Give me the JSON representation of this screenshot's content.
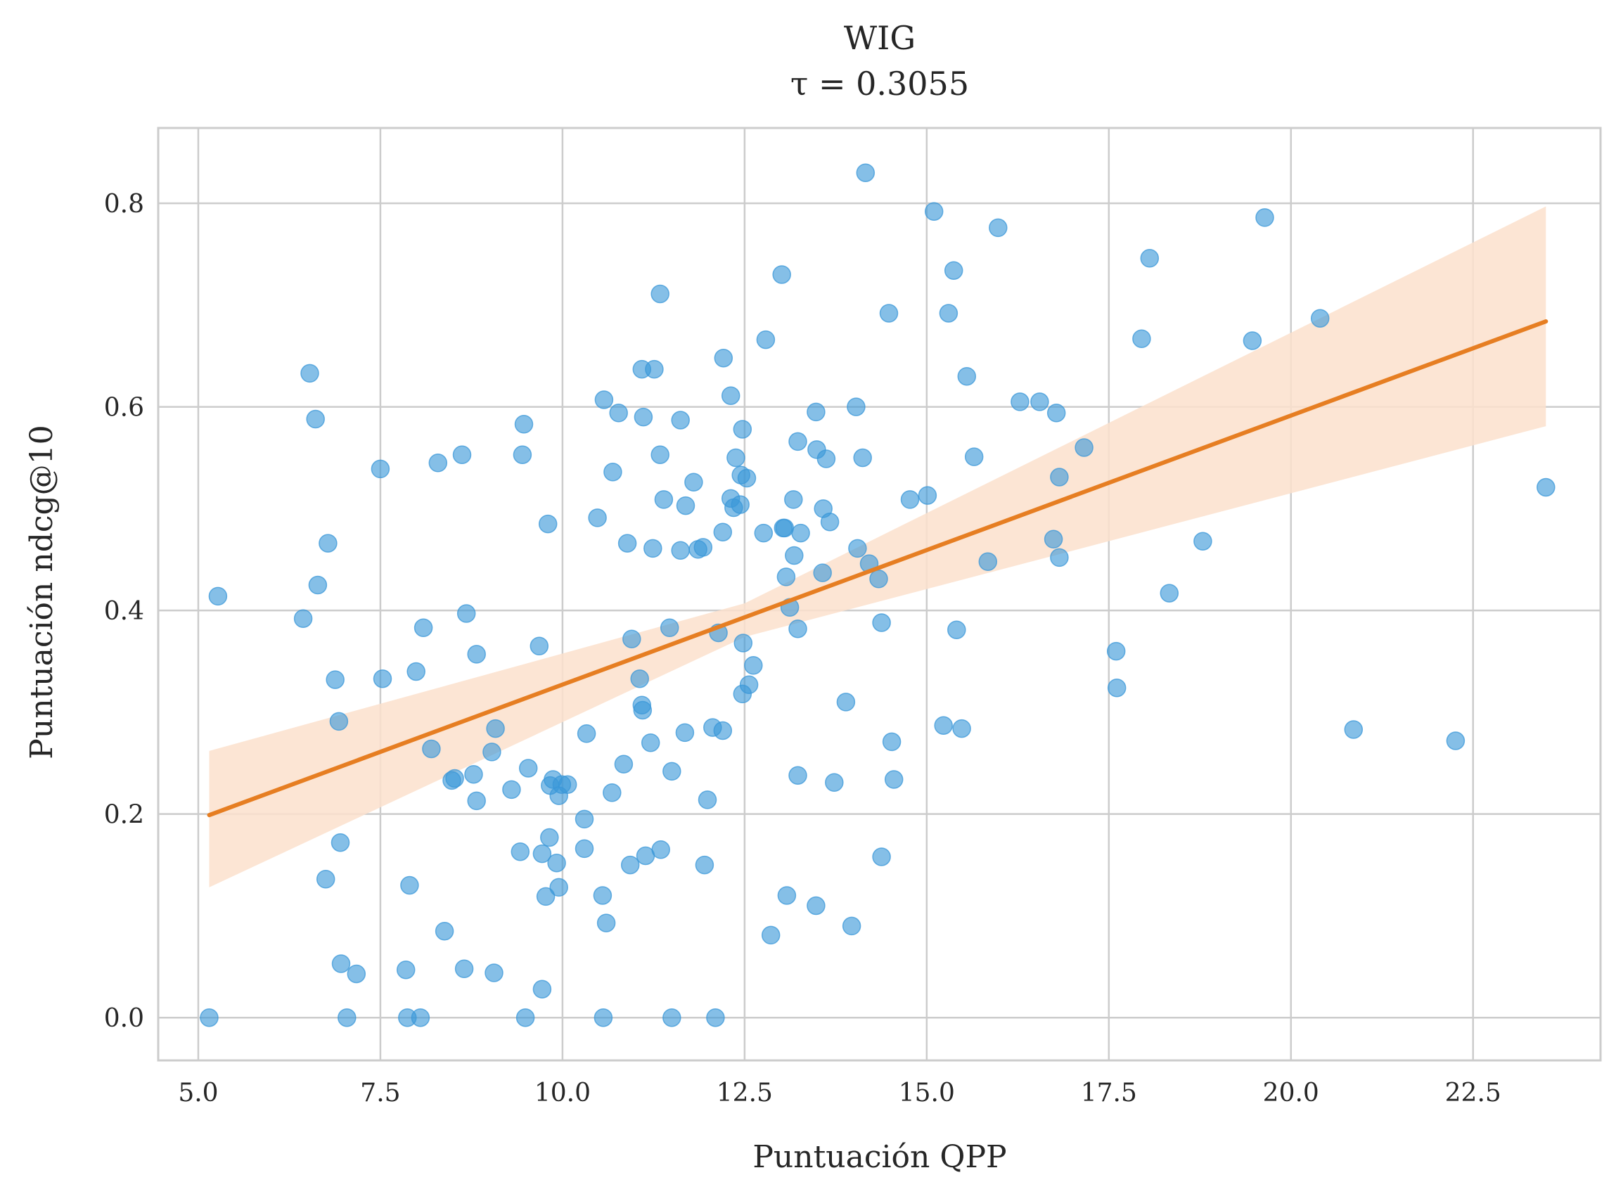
{
  "chart_data": {
    "type": "scatter",
    "title": "WIG",
    "subtitle": "τ = 0.3055",
    "xlabel": "Puntuación QPP",
    "ylabel": "Puntuación ndcg@10",
    "xlim": [
      4.45,
      24.25
    ],
    "ylim": [
      -0.042,
      0.874
    ],
    "xticks": [
      5.0,
      7.5,
      10.0,
      12.5,
      15.0,
      17.5,
      20.0,
      22.5
    ],
    "xtick_labels": [
      "5.0",
      "7.5",
      "10.0",
      "12.5",
      "15.0",
      "17.5",
      "20.0",
      "22.5"
    ],
    "yticks": [
      0.0,
      0.2,
      0.4,
      0.6,
      0.8
    ],
    "ytick_labels": [
      "0.0",
      "0.2",
      "0.4",
      "0.6",
      "0.8"
    ],
    "grid": true,
    "colors": {
      "points": "#3a97d8",
      "regression_line": "#e67e22",
      "confidence_band": "#fbe0cc",
      "grid": "#cccccc",
      "axes_frame": "#cccccc"
    },
    "regression": {
      "x": [
        5.15,
        23.5
      ],
      "y": [
        0.199,
        0.684
      ],
      "ci_lower": [
        0.128,
        0.581
      ],
      "ci_upper": [
        0.262,
        0.797
      ],
      "ci_mid_x": 12.5,
      "ci_mid_lower": 0.374,
      "ci_mid_upper": 0.407
    },
    "points": [
      [
        5.15,
        0.0
      ],
      [
        5.27,
        0.414
      ],
      [
        6.44,
        0.392
      ],
      [
        6.53,
        0.633
      ],
      [
        6.61,
        0.588
      ],
      [
        6.64,
        0.425
      ],
      [
        6.75,
        0.136
      ],
      [
        6.78,
        0.466
      ],
      [
        6.88,
        0.332
      ],
      [
        6.93,
        0.291
      ],
      [
        6.95,
        0.172
      ],
      [
        6.96,
        0.053
      ],
      [
        7.04,
        0.0
      ],
      [
        7.17,
        0.043
      ],
      [
        7.5,
        0.539
      ],
      [
        7.53,
        0.333
      ],
      [
        7.85,
        0.047
      ],
      [
        7.87,
        0.0
      ],
      [
        7.9,
        0.13
      ],
      [
        7.99,
        0.34
      ],
      [
        8.05,
        0.0
      ],
      [
        8.09,
        0.383
      ],
      [
        8.2,
        0.264
      ],
      [
        8.29,
        0.545
      ],
      [
        8.38,
        0.085
      ],
      [
        8.48,
        0.233
      ],
      [
        8.52,
        0.235
      ],
      [
        8.62,
        0.553
      ],
      [
        8.65,
        0.048
      ],
      [
        8.68,
        0.397
      ],
      [
        8.78,
        0.239
      ],
      [
        8.82,
        0.213
      ],
      [
        8.82,
        0.357
      ],
      [
        9.03,
        0.261
      ],
      [
        9.06,
        0.044
      ],
      [
        9.08,
        0.284
      ],
      [
        9.3,
        0.224
      ],
      [
        9.42,
        0.163
      ],
      [
        9.45,
        0.553
      ],
      [
        9.47,
        0.583
      ],
      [
        9.49,
        0.0
      ],
      [
        9.53,
        0.245
      ],
      [
        9.68,
        0.365
      ],
      [
        9.72,
        0.028
      ],
      [
        9.72,
        0.161
      ],
      [
        9.77,
        0.119
      ],
      [
        9.8,
        0.485
      ],
      [
        9.82,
        0.177
      ],
      [
        9.83,
        0.228
      ],
      [
        9.87,
        0.234
      ],
      [
        9.92,
        0.152
      ],
      [
        9.95,
        0.128
      ],
      [
        9.95,
        0.218
      ],
      [
        9.99,
        0.229
      ],
      [
        10.07,
        0.229
      ],
      [
        10.3,
        0.195
      ],
      [
        10.3,
        0.166
      ],
      [
        10.33,
        0.279
      ],
      [
        10.48,
        0.491
      ],
      [
        10.55,
        0.12
      ],
      [
        10.56,
        0.0
      ],
      [
        10.57,
        0.607
      ],
      [
        10.6,
        0.093
      ],
      [
        10.68,
        0.221
      ],
      [
        10.69,
        0.536
      ],
      [
        10.77,
        0.594
      ],
      [
        10.84,
        0.249
      ],
      [
        10.89,
        0.466
      ],
      [
        10.93,
        0.15
      ],
      [
        10.95,
        0.372
      ],
      [
        11.06,
        0.333
      ],
      [
        11.09,
        0.307
      ],
      [
        11.09,
        0.637
      ],
      [
        11.1,
        0.302
      ],
      [
        11.11,
        0.59
      ],
      [
        11.14,
        0.159
      ],
      [
        11.21,
        0.27
      ],
      [
        11.24,
        0.461
      ],
      [
        11.26,
        0.637
      ],
      [
        11.34,
        0.711
      ],
      [
        11.34,
        0.553
      ],
      [
        11.35,
        0.165
      ],
      [
        11.39,
        0.509
      ],
      [
        11.47,
        0.383
      ],
      [
        11.5,
        0.242
      ],
      [
        11.5,
        0.0
      ],
      [
        11.62,
        0.587
      ],
      [
        11.62,
        0.459
      ],
      [
        11.68,
        0.28
      ],
      [
        11.69,
        0.503
      ],
      [
        11.8,
        0.526
      ],
      [
        11.86,
        0.46
      ],
      [
        11.93,
        0.462
      ],
      [
        11.95,
        0.15
      ],
      [
        11.99,
        0.214
      ],
      [
        12.06,
        0.285
      ],
      [
        12.1,
        0.0
      ],
      [
        12.14,
        0.378
      ],
      [
        12.2,
        0.282
      ],
      [
        12.2,
        0.477
      ],
      [
        12.21,
        0.648
      ],
      [
        12.31,
        0.611
      ],
      [
        12.31,
        0.51
      ],
      [
        12.35,
        0.501
      ],
      [
        12.38,
        0.55
      ],
      [
        12.44,
        0.504
      ],
      [
        12.45,
        0.533
      ],
      [
        12.47,
        0.578
      ],
      [
        12.47,
        0.318
      ],
      [
        12.48,
        0.368
      ],
      [
        12.53,
        0.53
      ],
      [
        12.56,
        0.327
      ],
      [
        12.62,
        0.346
      ],
      [
        12.76,
        0.476
      ],
      [
        12.79,
        0.666
      ],
      [
        12.86,
        0.081
      ],
      [
        13.01,
        0.73
      ],
      [
        13.03,
        0.481
      ],
      [
        13.05,
        0.481
      ],
      [
        13.07,
        0.433
      ],
      [
        13.08,
        0.12
      ],
      [
        13.12,
        0.403
      ],
      [
        13.17,
        0.509
      ],
      [
        13.18,
        0.454
      ],
      [
        13.23,
        0.382
      ],
      [
        13.23,
        0.566
      ],
      [
        13.23,
        0.238
      ],
      [
        13.27,
        0.476
      ],
      [
        13.48,
        0.11
      ],
      [
        13.48,
        0.595
      ],
      [
        13.49,
        0.558
      ],
      [
        13.57,
        0.437
      ],
      [
        13.58,
        0.5
      ],
      [
        13.62,
        0.549
      ],
      [
        13.67,
        0.487
      ],
      [
        13.73,
        0.231
      ],
      [
        13.89,
        0.31
      ],
      [
        13.97,
        0.09
      ],
      [
        14.03,
        0.6
      ],
      [
        14.05,
        0.461
      ],
      [
        14.12,
        0.55
      ],
      [
        14.16,
        0.83
      ],
      [
        14.21,
        0.446
      ],
      [
        14.34,
        0.431
      ],
      [
        14.38,
        0.388
      ],
      [
        14.38,
        0.158
      ],
      [
        14.48,
        0.692
      ],
      [
        14.52,
        0.271
      ],
      [
        14.55,
        0.234
      ],
      [
        14.77,
        0.509
      ],
      [
        15.01,
        0.513
      ],
      [
        15.1,
        0.792
      ],
      [
        15.23,
        0.287
      ],
      [
        15.3,
        0.692
      ],
      [
        15.37,
        0.734
      ],
      [
        15.41,
        0.381
      ],
      [
        15.48,
        0.284
      ],
      [
        15.55,
        0.63
      ],
      [
        15.65,
        0.551
      ],
      [
        15.84,
        0.448
      ],
      [
        15.98,
        0.776
      ],
      [
        16.28,
        0.605
      ],
      [
        16.55,
        0.605
      ],
      [
        16.74,
        0.47
      ],
      [
        16.78,
        0.594
      ],
      [
        16.82,
        0.531
      ],
      [
        16.82,
        0.452
      ],
      [
        17.16,
        0.56
      ],
      [
        17.6,
        0.36
      ],
      [
        17.61,
        0.324
      ],
      [
        17.95,
        0.667
      ],
      [
        18.06,
        0.746
      ],
      [
        18.33,
        0.417
      ],
      [
        18.79,
        0.468
      ],
      [
        19.47,
        0.665
      ],
      [
        19.64,
        0.786
      ],
      [
        20.4,
        0.687
      ],
      [
        20.86,
        0.283
      ],
      [
        22.26,
        0.272
      ],
      [
        23.5,
        0.521
      ]
    ]
  }
}
